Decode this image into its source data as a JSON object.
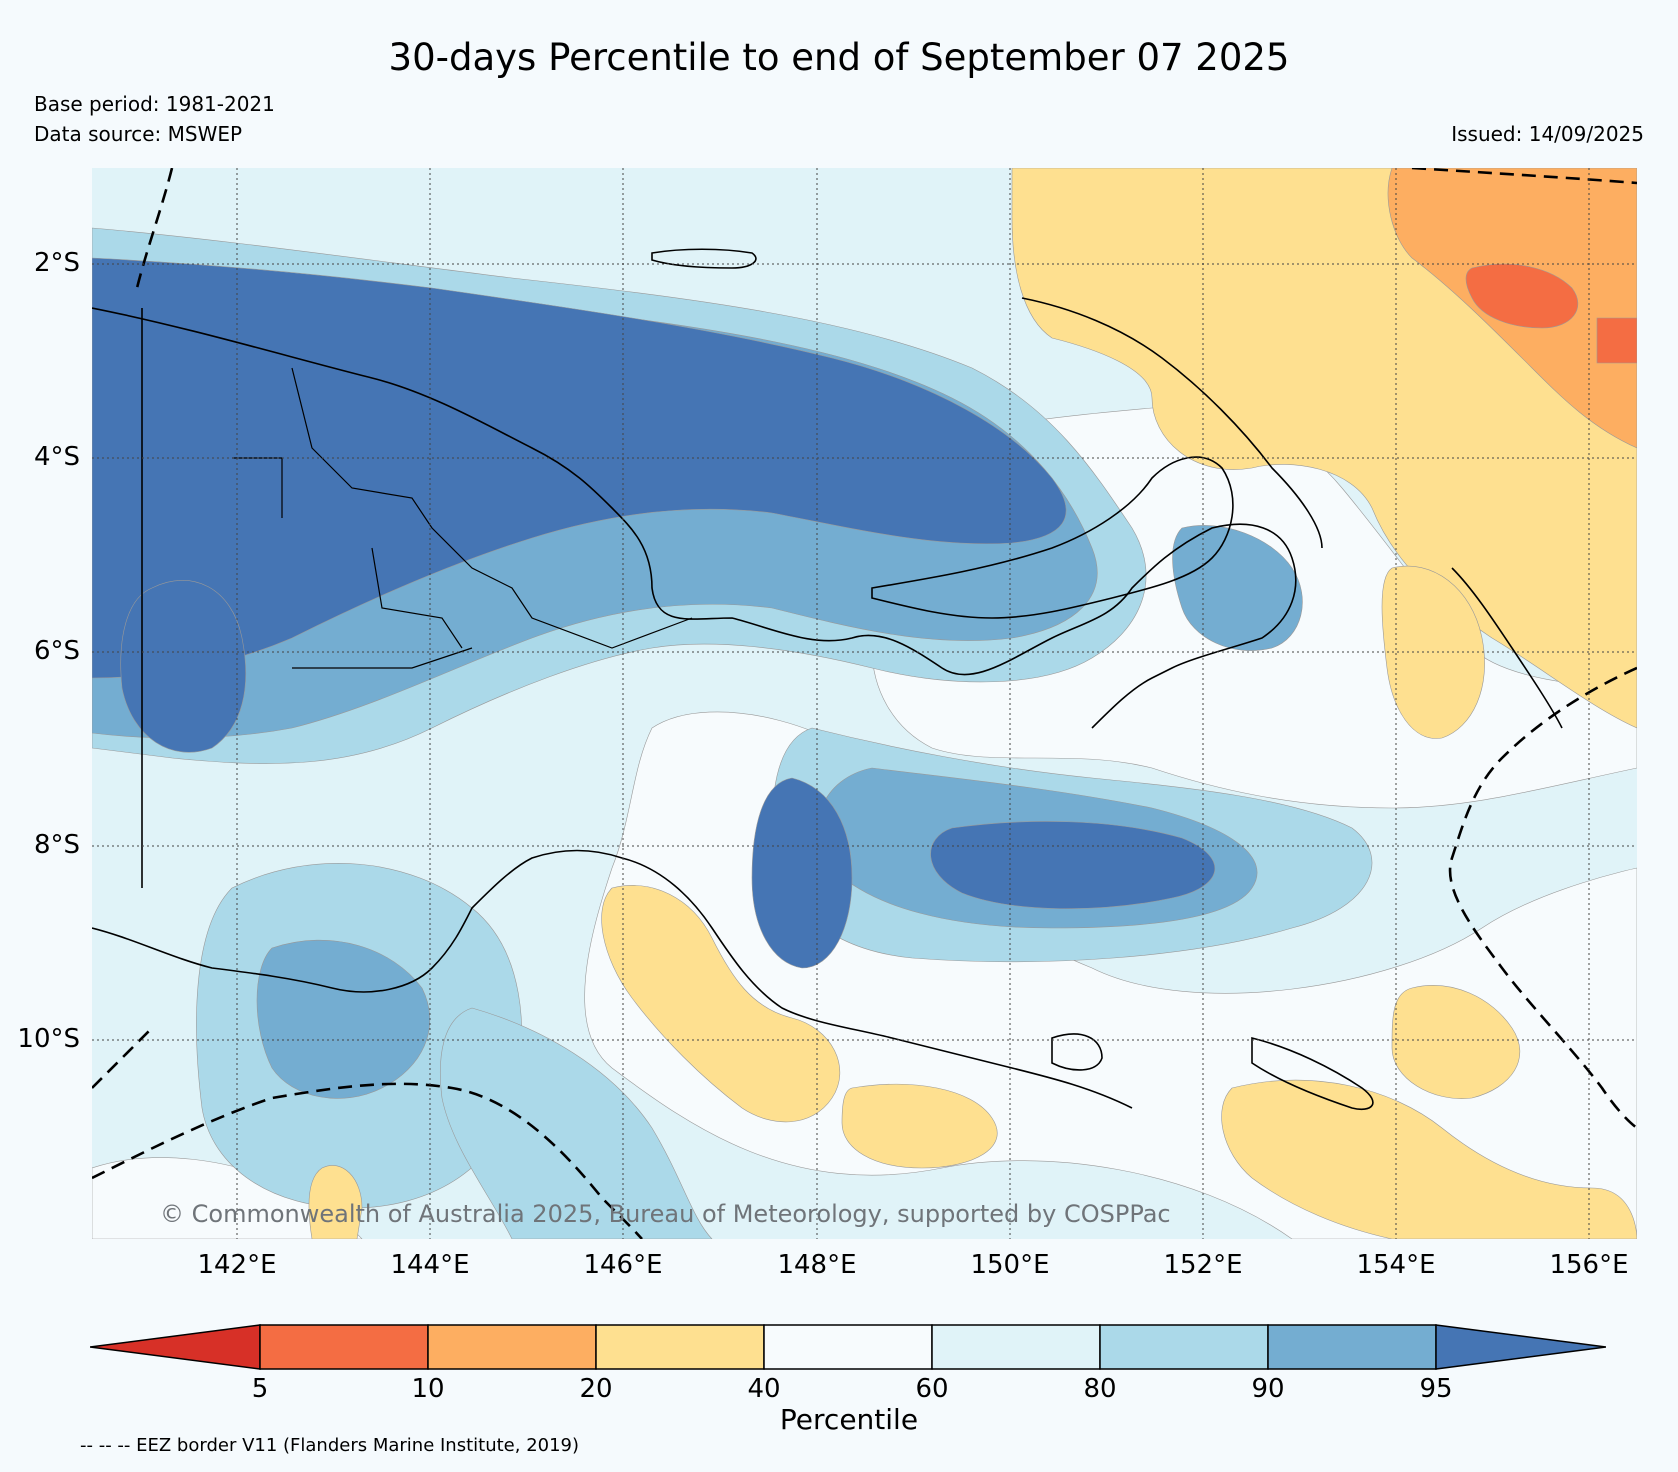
{
  "title": "30-days Percentile to end of September 07 2025",
  "meta": {
    "base_period": "Base period: 1981-2021",
    "data_source": "Data source: MSWEP",
    "issued": "Issued: 14/09/2025"
  },
  "axes": {
    "lat_labels": [
      "2°S",
      "4°S",
      "6°S",
      "8°S",
      "10°S"
    ],
    "lon_labels": [
      "142°E",
      "144°E",
      "146°E",
      "148°E",
      "150°E",
      "152°E",
      "154°E",
      "156°E"
    ]
  },
  "copyright": "© Commonwealth of Australia 2025, Bureau of Meteorology, supported by COSPPac",
  "colorbar": {
    "title": "Percentile",
    "tick_labels": [
      "5",
      "10",
      "20",
      "40",
      "60",
      "80",
      "90",
      "95"
    ],
    "colors": [
      "#d73027",
      "#f46d43",
      "#fdae61",
      "#fee090",
      "#f7fbfd",
      "#e0f3f8",
      "#abd9e9",
      "#74add1",
      "#4575b4"
    ]
  },
  "eez_note": "-- -- -- EEZ border V11 (Flanders Marine Institute, 2019)"
}
